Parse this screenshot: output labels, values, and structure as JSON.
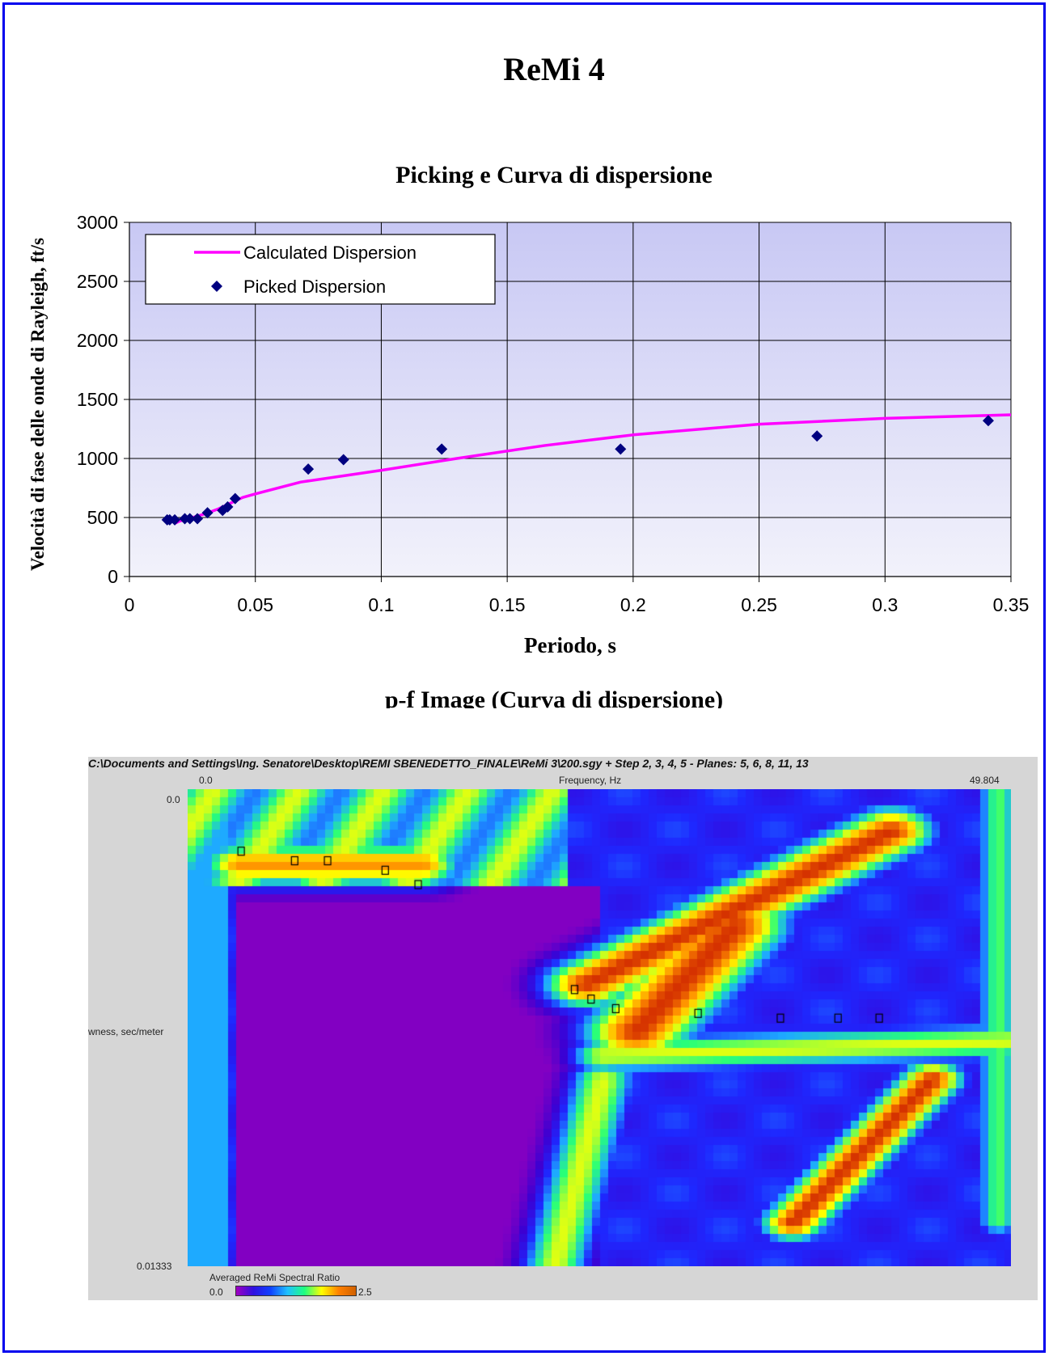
{
  "page_title": "ReMi 4",
  "chart_data": {
    "type": "scatter",
    "title": "Picking e Curva di dispersione",
    "xlabel": "Periodo, s",
    "ylabel": "Velocità di fase delle onde di Rayleigh, ft/s",
    "xlim": [
      0,
      0.35
    ],
    "ylim": [
      0,
      3000
    ],
    "x_ticks": [
      "0",
      "0.05",
      "0.1",
      "0.15",
      "0.2",
      "0.25",
      "0.3",
      "0.35"
    ],
    "y_ticks": [
      "0",
      "500",
      "1000",
      "1500",
      "2000",
      "2500",
      "3000"
    ],
    "grid": true,
    "legend_position": "top-left",
    "plot_background": [
      "#c8c8f4",
      "#f2f2fb"
    ],
    "series": [
      {
        "name": "Calculated Dispersion",
        "kind": "line",
        "color": "#ff00ff",
        "x": [
          0.018,
          0.02,
          0.025,
          0.03,
          0.035,
          0.04,
          0.045,
          0.05,
          0.068,
          0.1,
          0.13,
          0.165,
          0.2,
          0.25,
          0.3,
          0.35
        ],
        "y": [
          450,
          470,
          500,
          530,
          570,
          620,
          670,
          700,
          800,
          900,
          1000,
          1110,
          1200,
          1290,
          1340,
          1370
        ]
      },
      {
        "name": "Picked Dispersion",
        "kind": "scatter",
        "color": "#000080",
        "marker": "diamond",
        "x": [
          0.015,
          0.016,
          0.018,
          0.022,
          0.024,
          0.027,
          0.031,
          0.037,
          0.039,
          0.042,
          0.071,
          0.085,
          0.124,
          0.195,
          0.273,
          0.341
        ],
        "y": [
          480,
          480,
          480,
          490,
          490,
          490,
          540,
          560,
          590,
          660,
          910,
          990,
          1080,
          1080,
          1190,
          1320
        ]
      }
    ]
  },
  "pf_section": {
    "title": "p-f Image  (Curva di dispersione)",
    "header_text": "C:\\Documents and Settings\\Ing. Senatore\\Desktop\\REMI SBENEDETTO_FINALE\\ReMi 3\\200.sgy + Step 2,  3,  4, 5 - Planes: 5, 6, 8, 11, 13",
    "freq_min": "0.0",
    "freq_label": "Frequency, Hz",
    "freq_max": "49.804",
    "slow_min": "0.0",
    "slow_label": "wness, sec/meter",
    "slow_max": "0.01333",
    "colorbar_label": "Averaged ReMi Spectral Ratio",
    "colorbar_min": "0.0",
    "colorbar_max": "2.5"
  }
}
